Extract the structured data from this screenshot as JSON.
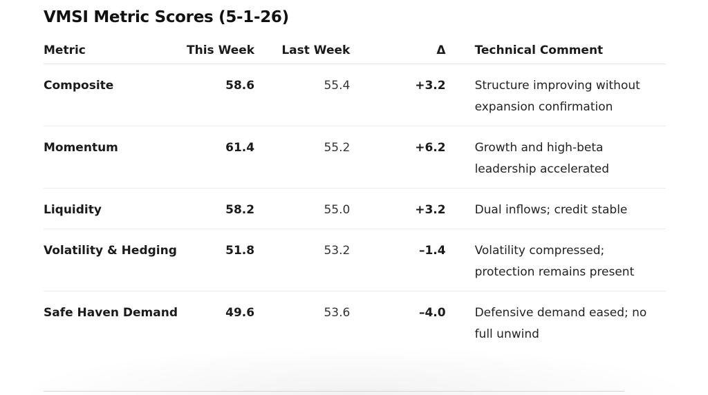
{
  "title": "VMSI Metric Scores (5-1-26)",
  "table": {
    "headers": {
      "metric": "Metric",
      "this_week": "This Week",
      "last_week": "Last Week",
      "delta": "Δ",
      "comment": "Technical Comment"
    },
    "rows": [
      {
        "metric": "Composite",
        "this_week": "58.6",
        "last_week": "55.4",
        "delta": "+3.2",
        "comment": "Structure improving without expansion confirmation"
      },
      {
        "metric": "Momentum",
        "this_week": "61.4",
        "last_week": "55.2",
        "delta": "+6.2",
        "comment": "Growth and high-beta leadership accelerated"
      },
      {
        "metric": "Liquidity",
        "this_week": "58.2",
        "last_week": "55.0",
        "delta": "+3.2",
        "comment": "Dual inflows; credit stable"
      },
      {
        "metric": "Volatility & Hedging",
        "this_week": "51.8",
        "last_week": "53.2",
        "delta": "–1.4",
        "comment": "Volatility compressed; protection remains present"
      },
      {
        "metric": "Safe Haven Demand",
        "this_week": "49.6",
        "last_week": "53.6",
        "delta": "–4.0",
        "comment": "Defensive demand eased; no full unwind"
      }
    ]
  }
}
